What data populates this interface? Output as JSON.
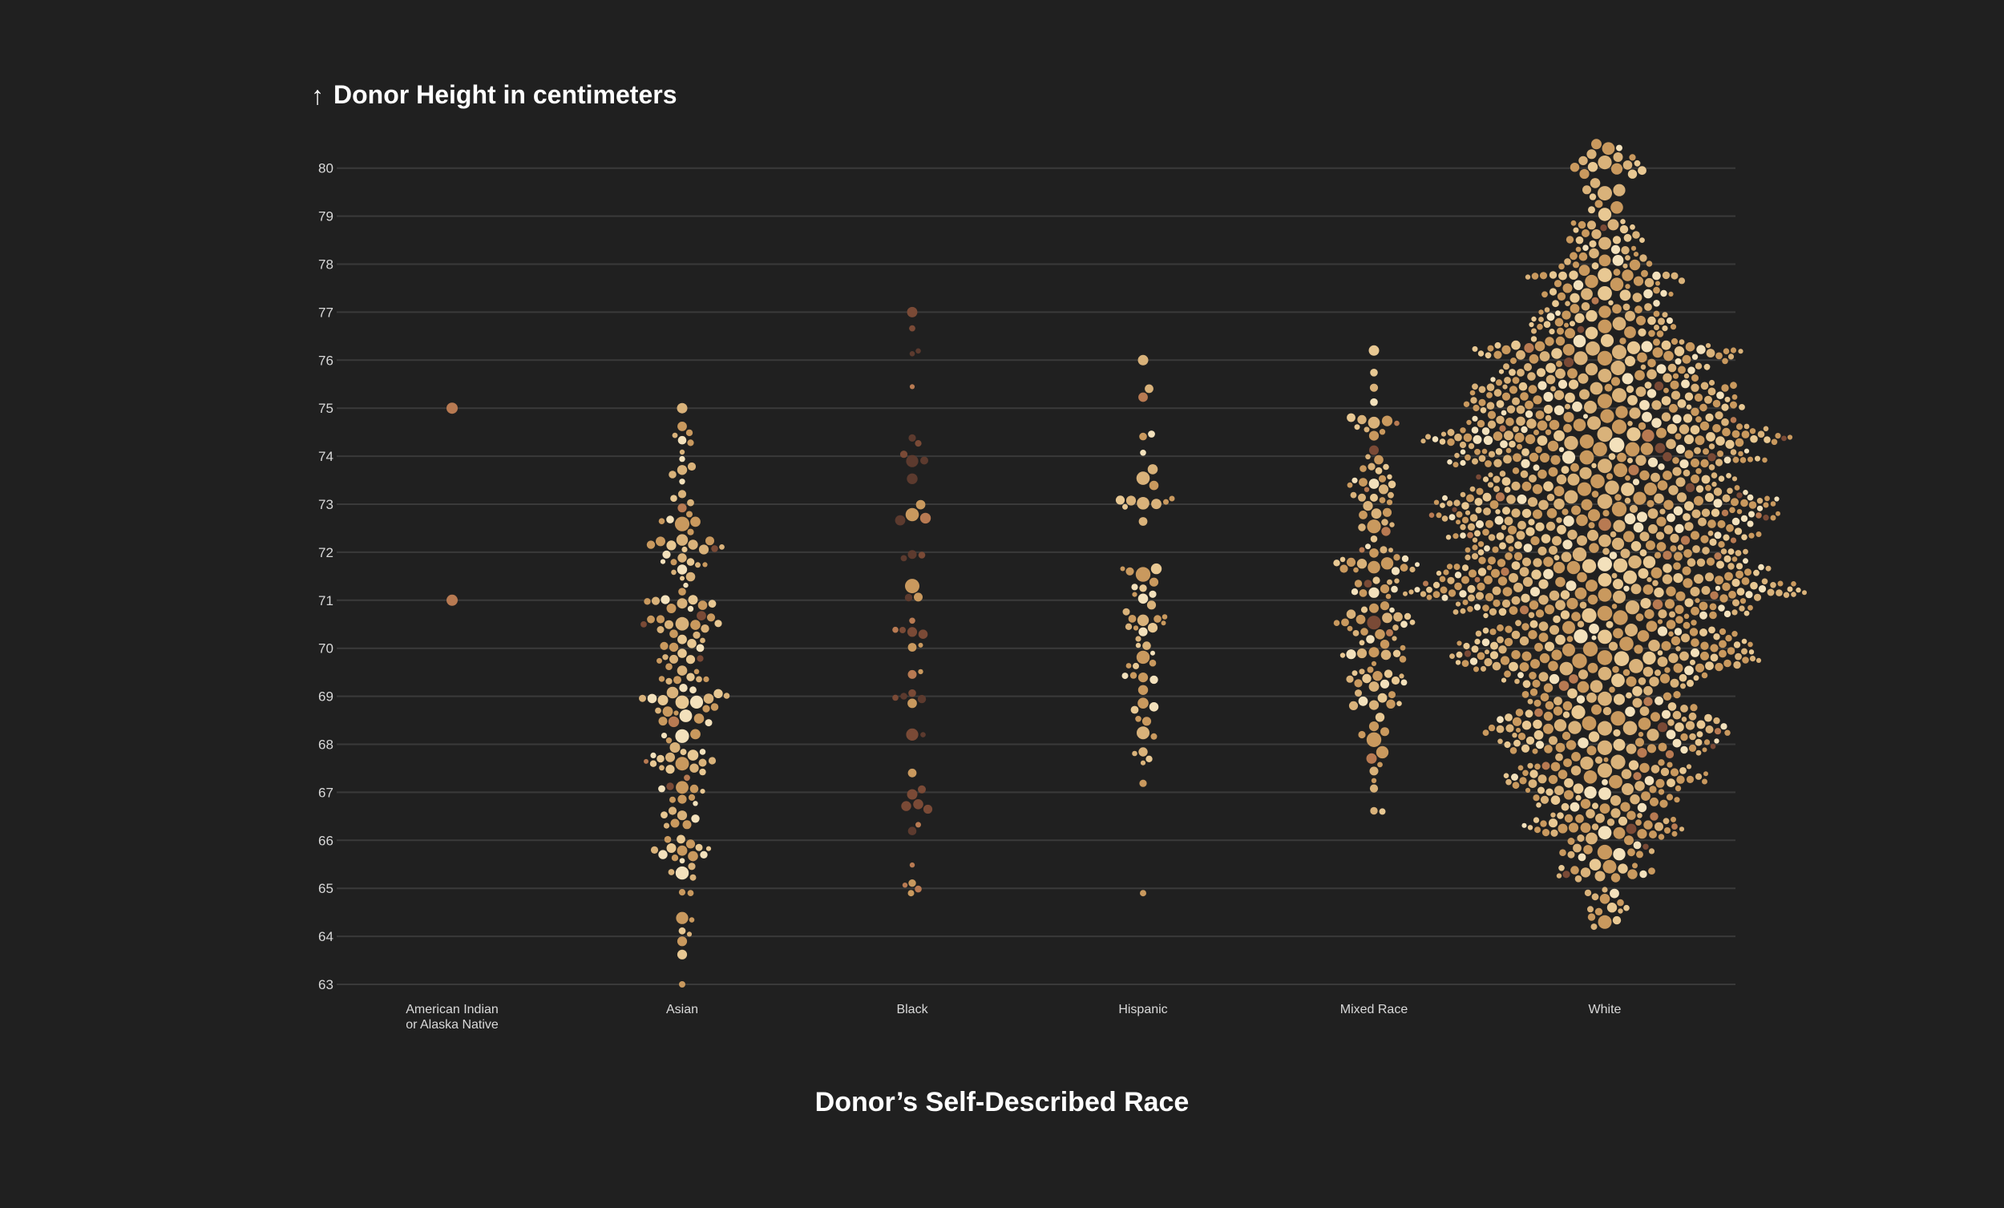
{
  "chart_data": {
    "type": "scatter",
    "subtype": "beeswarm",
    "ylabel": "Donor Height in centimeters",
    "xlabel": "Donor’s Self-Described Race",
    "ylim": [
      63,
      80.6
    ],
    "yticks": [
      63,
      64,
      65,
      66,
      67,
      68,
      69,
      70,
      71,
      72,
      73,
      74,
      75,
      76,
      77,
      78,
      79,
      80
    ],
    "grid": true,
    "categories": [
      {
        "label_lines": [
          "American Indian",
          "or Alaska Native"
        ],
        "count": 2,
        "min": 71,
        "max": 75,
        "points": [
          71,
          75
        ]
      },
      {
        "label_lines": [
          "Asian"
        ],
        "count": 170,
        "min": 63,
        "max": 75,
        "median": 69.6
      },
      {
        "label_lines": [
          "Black"
        ],
        "count": 48,
        "min": 64.9,
        "max": 77
      },
      {
        "label_lines": [
          "Hispanic"
        ],
        "count": 62,
        "min": 64.9,
        "max": 76
      },
      {
        "label_lines": [
          "Mixed Race"
        ],
        "count": 140,
        "min": 66.6,
        "max": 76.2
      },
      {
        "label_lines": [
          "White"
        ],
        "count": 1350,
        "min": 64.2,
        "max": 80.5
      }
    ]
  },
  "title": {
    "arrow_icon": "↑",
    "text": "Donor Height in centimeters"
  },
  "x_axis_title": "Donor’s Self-Described Race",
  "colors": {
    "background": "#202020",
    "grid": "#3a3a3a",
    "palette": [
      "#c9995e",
      "#d9b27a",
      "#e8c893",
      "#f3e1bc",
      "#b87a52",
      "#7a4a36",
      "#5c3a2e"
    ]
  }
}
